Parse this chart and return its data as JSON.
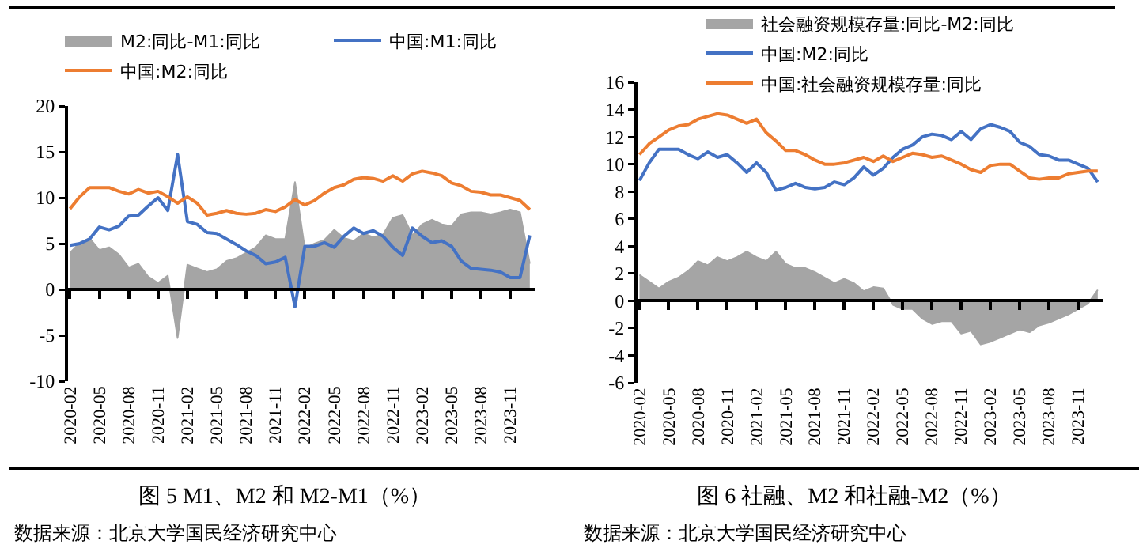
{
  "chart_data": [
    {
      "type": "line",
      "title": "图 5 M1、M2 和 M2-M1（%）",
      "categories": [
        "2020-02",
        null,
        null,
        "2020-05",
        null,
        null,
        "2020-08",
        null,
        null,
        "2020-11",
        null,
        null,
        "2021-02",
        null,
        null,
        "2021-05",
        null,
        null,
        "2021-08",
        null,
        null,
        "2021-11",
        null,
        null,
        "2022-02",
        null,
        null,
        "2022-05",
        null,
        null,
        "2022-08",
        null,
        null,
        "2022-11",
        null,
        null,
        "2023-02",
        null,
        null,
        "2023-05",
        null,
        null,
        "2023-08",
        null,
        null,
        "2023-11",
        null,
        null
      ],
      "series": [
        {
          "name": "M2:同比-M1:同比",
          "type": "area",
          "color": "#a5a5a5",
          "values": [
            4.0,
            5.1,
            5.6,
            4.3,
            4.6,
            3.8,
            2.4,
            2.8,
            1.4,
            0.7,
            1.5,
            -5.3,
            2.7,
            2.3,
            1.9,
            2.2,
            3.1,
            3.4,
            4.0,
            4.6,
            5.9,
            5.5,
            5.5,
            11.7,
            4.5,
            5.0,
            5.4,
            6.5,
            5.6,
            5.3,
            6.1,
            5.7,
            6.0,
            7.8,
            8.1,
            5.9,
            7.1,
            7.6,
            7.1,
            6.9,
            8.2,
            8.4,
            8.4,
            8.2,
            8.4,
            8.7,
            8.4,
            2.8
          ]
        },
        {
          "name": "中国:M1:同比",
          "type": "line",
          "color": "#4472c4",
          "values": [
            4.8,
            5.0,
            5.5,
            6.8,
            6.5,
            6.9,
            8.0,
            8.1,
            9.1,
            10.0,
            8.6,
            14.7,
            7.4,
            7.1,
            6.2,
            6.1,
            5.5,
            4.9,
            4.2,
            3.7,
            2.8,
            3.0,
            3.5,
            -1.9,
            4.7,
            4.7,
            5.1,
            4.6,
            5.8,
            6.7,
            6.1,
            6.4,
            5.8,
            4.6,
            3.7,
            6.7,
            5.8,
            5.1,
            5.3,
            4.7,
            3.1,
            2.3,
            2.2,
            2.1,
            1.9,
            1.3,
            1.3,
            5.9
          ]
        },
        {
          "name": "中国:M2:同比",
          "type": "line",
          "color": "#ed7d31",
          "values": [
            8.8,
            10.1,
            11.1,
            11.1,
            11.1,
            10.7,
            10.4,
            10.9,
            10.5,
            10.7,
            10.1,
            9.4,
            10.1,
            9.4,
            8.1,
            8.3,
            8.6,
            8.3,
            8.2,
            8.3,
            8.7,
            8.5,
            9.0,
            9.8,
            9.2,
            9.7,
            10.5,
            11.1,
            11.4,
            12.0,
            12.2,
            12.1,
            11.8,
            12.4,
            11.8,
            12.6,
            12.9,
            12.7,
            12.4,
            11.6,
            11.3,
            10.7,
            10.6,
            10.3,
            10.3,
            10.0,
            9.7,
            8.7
          ]
        }
      ],
      "ylim": [
        -10,
        20
      ],
      "yticks": [
        -10,
        -5,
        0,
        5,
        10,
        15,
        20
      ],
      "legend": "top",
      "annotations": [
        "数据来源：北京大学国民经济研究中心"
      ]
    },
    {
      "type": "line",
      "title": "图 6 社融、M2 和社融-M2（%）",
      "categories": [
        "2020-02",
        null,
        null,
        "2020-05",
        null,
        null,
        "2020-08",
        null,
        null,
        "2020-11",
        null,
        null,
        "2021-02",
        null,
        null,
        "2021-05",
        null,
        null,
        "2021-08",
        null,
        null,
        "2021-11",
        null,
        null,
        "2022-02",
        null,
        null,
        "2022-05",
        null,
        null,
        "2022-08",
        null,
        null,
        "2022-11",
        null,
        null,
        "2023-02",
        null,
        null,
        "2023-05",
        null,
        null,
        "2023-08",
        null,
        null,
        "2023-11",
        null,
        null
      ],
      "series": [
        {
          "name": "社会融资规模存量:同比-M2:同比",
          "type": "area",
          "color": "#a5a5a5",
          "values": [
            1.9,
            1.4,
            0.9,
            1.4,
            1.7,
            2.2,
            2.9,
            2.6,
            3.2,
            2.9,
            3.2,
            3.6,
            3.2,
            2.9,
            3.6,
            2.7,
            2.4,
            2.4,
            2.1,
            1.7,
            1.3,
            1.6,
            1.3,
            0.7,
            1.0,
            0.9,
            -0.3,
            -0.6,
            -0.6,
            -1.3,
            -1.7,
            -1.5,
            -1.5,
            -2.4,
            -2.2,
            -3.2,
            -3.0,
            -2.7,
            -2.4,
            -2.1,
            -2.3,
            -1.8,
            -1.6,
            -1.3,
            -1.0,
            -0.6,
            -0.2,
            0.8
          ]
        },
        {
          "name": "中国:M2:同比",
          "type": "line",
          "color": "#4472c4",
          "values": [
            8.8,
            10.1,
            11.1,
            11.1,
            11.1,
            10.7,
            10.4,
            10.9,
            10.5,
            10.7,
            10.1,
            9.4,
            10.1,
            9.4,
            8.1,
            8.3,
            8.6,
            8.3,
            8.2,
            8.3,
            8.7,
            8.5,
            9.0,
            9.8,
            9.2,
            9.7,
            10.5,
            11.1,
            11.4,
            12.0,
            12.2,
            12.1,
            11.8,
            12.4,
            11.8,
            12.6,
            12.9,
            12.7,
            12.4,
            11.6,
            11.3,
            10.7,
            10.6,
            10.3,
            10.3,
            10.0,
            9.7,
            8.7
          ]
        },
        {
          "name": "中国:社会融资规模存量:同比",
          "type": "line",
          "color": "#ed7d31",
          "values": [
            10.7,
            11.5,
            12.0,
            12.5,
            12.8,
            12.9,
            13.3,
            13.5,
            13.7,
            13.6,
            13.3,
            13.0,
            13.3,
            12.3,
            11.7,
            11.0,
            11.0,
            10.7,
            10.3,
            10.0,
            10.0,
            10.1,
            10.3,
            10.5,
            10.2,
            10.6,
            10.2,
            10.5,
            10.8,
            10.7,
            10.5,
            10.6,
            10.3,
            10.0,
            9.6,
            9.4,
            9.9,
            10.0,
            10.0,
            9.5,
            9.0,
            8.9,
            9.0,
            9.0,
            9.3,
            9.4,
            9.5,
            9.5
          ]
        }
      ],
      "ylim": [
        -6,
        16
      ],
      "yticks": [
        -6,
        -4,
        -2,
        0,
        2,
        4,
        6,
        8,
        10,
        12,
        14,
        16
      ],
      "legend": "top",
      "annotations": [
        "数据来源：北京大学国民经济研究中心"
      ]
    }
  ]
}
